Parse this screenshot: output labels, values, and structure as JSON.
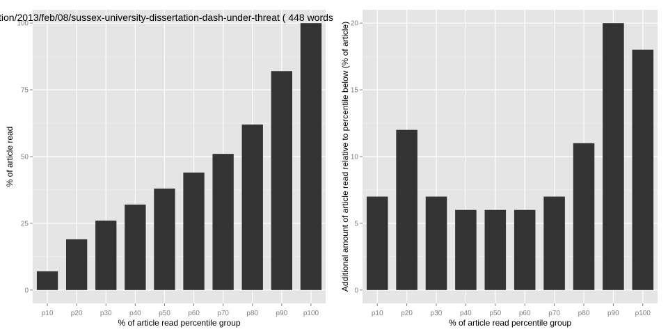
{
  "chart_data": [
    {
      "type": "bar",
      "title": "tion/2013/feb/08/sussex-university-dissertation-dash-under-threat ( 448 words",
      "xlabel": "% of article read percentile group",
      "ylabel": "% of article read",
      "categories": [
        "p10",
        "p20",
        "p30",
        "p40",
        "p50",
        "p60",
        "p70",
        "p80",
        "p90",
        "p100"
      ],
      "values": [
        7,
        19,
        26,
        32,
        38,
        44,
        51,
        62,
        82,
        100
      ],
      "ylim": [
        -5,
        105
      ],
      "yticks": [
        0,
        25,
        50,
        75,
        100
      ],
      "grid": true,
      "colors": {
        "panel": "#e5e5e5",
        "bar": "#333333",
        "grid": "#ffffff",
        "tick_text": "#7f7f7f"
      }
    },
    {
      "type": "bar",
      "title": "",
      "xlabel": "% of article read percentile group",
      "ylabel": "Additional amount of article read relative to percentile below (% of article)",
      "categories": [
        "p10",
        "p20",
        "p30",
        "p40",
        "p50",
        "p60",
        "p70",
        "p80",
        "p90",
        "p100"
      ],
      "values": [
        7,
        12,
        7,
        6,
        6,
        6,
        7,
        11,
        20,
        18
      ],
      "ylim": [
        -1,
        21
      ],
      "yticks": [
        0,
        5,
        10,
        15,
        20
      ],
      "grid": true,
      "colors": {
        "panel": "#e5e5e5",
        "bar": "#333333",
        "grid": "#ffffff",
        "tick_text": "#7f7f7f"
      }
    }
  ]
}
